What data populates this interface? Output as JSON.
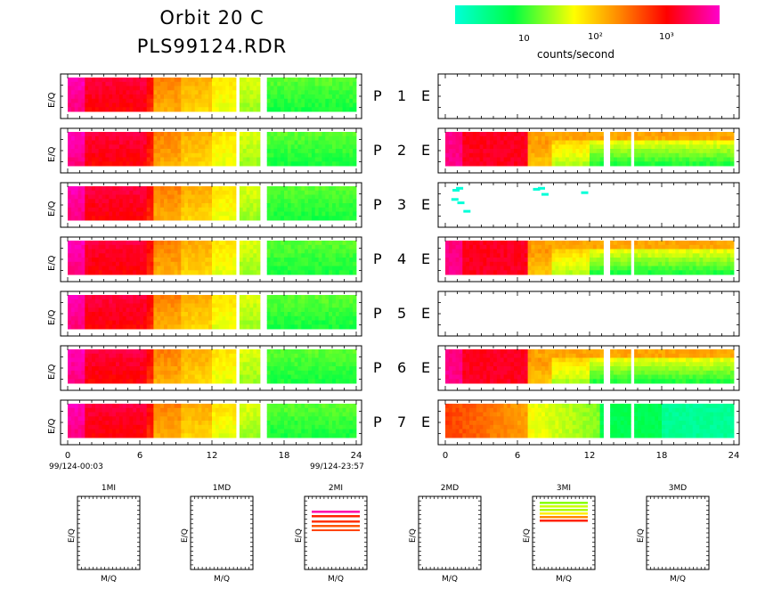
{
  "header": {
    "title_line1": "Orbit 20 C",
    "title_line2": "PLS99124.RDR"
  },
  "colorbar": {
    "tick_labels": [
      "10",
      "10²",
      "10³"
    ],
    "label": "counts/second",
    "scale": "log",
    "colors": [
      "#00ffd8",
      "#00ff44",
      "#ffff00",
      "#ff8800",
      "#ff0000",
      "#ff00cc"
    ]
  },
  "panel_labels": {
    "p_letter": "P",
    "e_letter": "E",
    "numbers": [
      "1",
      "2",
      "3",
      "4",
      "5",
      "6",
      "7"
    ],
    "ylabel": "E/Q"
  },
  "time_axis": {
    "ticks": [
      "0",
      "6",
      "12",
      "18",
      "24"
    ],
    "start_label": "99/124-00:03",
    "end_label": "99/124-23:57"
  },
  "mass_panels": {
    "titles": [
      "1MI",
      "1MD",
      "2MI",
      "2MD",
      "3MI",
      "3MD"
    ],
    "xlabel": "M/Q",
    "ylabel": "E/Q"
  },
  "chart_data": {
    "type": "heatmap",
    "x_unit": "hours of day",
    "xlim": [
      0,
      24
    ],
    "color_scale": "log counts/second",
    "p_panels_gaps_hours": [
      [
        13.9,
        14.4
      ],
      [
        16.1,
        16.5
      ]
    ],
    "e_panels_with_data": [
      "2",
      "3",
      "4",
      "6",
      "7"
    ],
    "e_panels_empty": [
      "1",
      "5"
    ],
    "mass_panels_with_data": [
      "2MI",
      "3MI"
    ]
  }
}
